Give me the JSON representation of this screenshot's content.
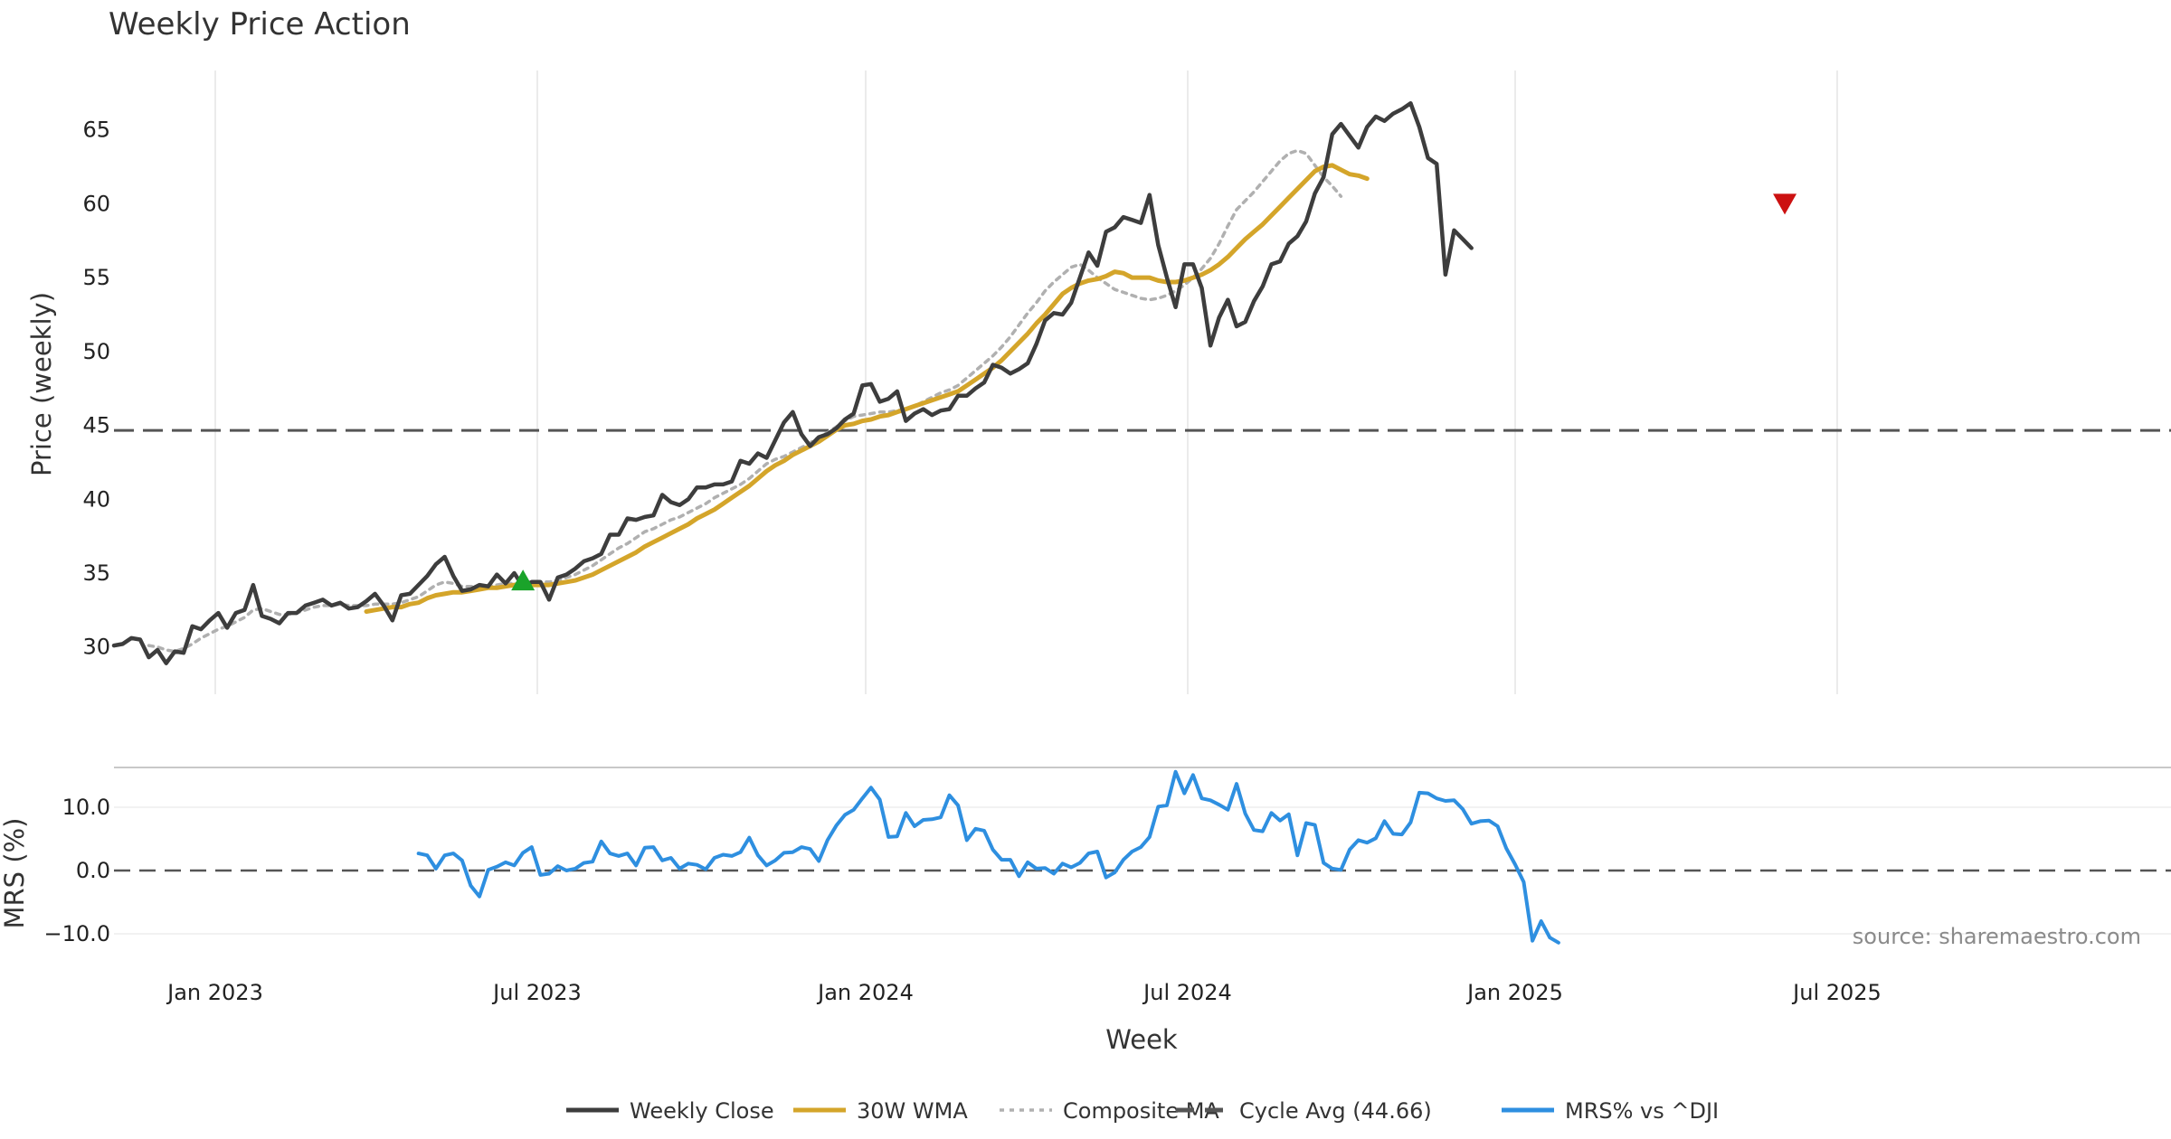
{
  "chart_data": {
    "type": "line",
    "title": "Weekly Price Action",
    "source": "source: sharemaestro.com",
    "xlabel": "Week",
    "x_ticks": [
      "Jan 2023",
      "Jul 2023",
      "Jan 2024",
      "Jul 2024",
      "Jan 2025",
      "Jul 2025"
    ],
    "price_panel": {
      "ylabel": "Price (weekly)",
      "ylim": [
        26.8,
        69.2
      ],
      "y_ticks": [
        30,
        35,
        40,
        45,
        50,
        55,
        60,
        65
      ],
      "cycle_avg": 44.66,
      "signals": [
        {
          "type": "buy",
          "week_index": 47,
          "price": 34.5,
          "color": "#1aa32a"
        },
        {
          "type": "sell",
          "week_index": 192,
          "price": 60.0,
          "color": "#cc1111"
        }
      ]
    },
    "mrs_panel": {
      "ylabel": "MRS (%)",
      "ylim": [
        -14,
        16
      ],
      "y_ticks": [
        "10.0",
        "0.0",
        "−10.0"
      ],
      "y_tick_values": [
        10,
        0,
        -10
      ],
      "zero_line": 0
    },
    "legend": [
      {
        "label": "Weekly Close",
        "color": "#3d3d3d",
        "style": "solid"
      },
      {
        "label": "30W WMA",
        "color": "#d4a52a",
        "style": "solid"
      },
      {
        "label": "Composite MA",
        "color": "#b0b0b0",
        "style": "dotted"
      },
      {
        "label": "Cycle Avg (44.66)",
        "color": "#555555",
        "style": "dashed"
      },
      {
        "label": "MRS% vs ^DJI",
        "color": "#2e8fe0",
        "style": "solid"
      }
    ],
    "series": [
      {
        "name": "Weekly Close",
        "values": [
          30.1,
          30.2,
          30.6,
          30.5,
          29.3,
          29.8,
          28.9,
          29.7,
          29.6,
          31.4,
          31.2,
          31.8,
          32.3,
          31.3,
          32.3,
          32.5,
          34.2,
          32.1,
          31.9,
          31.6,
          32.3,
          32.3,
          32.8,
          33.0,
          33.2,
          32.8,
          33.0,
          32.6,
          32.7,
          33.1,
          33.6,
          32.8,
          31.8,
          33.5,
          33.6,
          34.2,
          34.8,
          35.6,
          36.1,
          34.8,
          33.8,
          33.9,
          34.2,
          34.1,
          34.9,
          34.3,
          35.0,
          34.1,
          34.4,
          34.4,
          33.2,
          34.7,
          34.9,
          35.3,
          35.8,
          36.0,
          36.3,
          37.6,
          37.6,
          38.7,
          38.6,
          38.8,
          38.9,
          40.3,
          39.8,
          39.6,
          40.0,
          40.8,
          40.8,
          41.0,
          41.0,
          41.2,
          42.6,
          42.4,
          43.1,
          42.8,
          44.0,
          45.2,
          45.9,
          44.4,
          43.6,
          44.2,
          44.4,
          44.8,
          45.4,
          45.8,
          47.7,
          47.8,
          46.6,
          46.8,
          47.3,
          45.3,
          45.8,
          46.1,
          45.7,
          46.0,
          46.1,
          47.0,
          47.0,
          47.5,
          47.9,
          49.1,
          48.9,
          48.5,
          48.8,
          49.2,
          50.5,
          52.1,
          52.6,
          52.5,
          53.3,
          55.0,
          56.7,
          55.8,
          58.1,
          58.4,
          59.1,
          58.9,
          58.7,
          60.6,
          57.2,
          55.0,
          53.0,
          55.9,
          55.9,
          54.3,
          50.4,
          52.3,
          53.5,
          51.7,
          52.0,
          53.4,
          54.4,
          55.9,
          56.1,
          57.3,
          57.8,
          58.8,
          60.7,
          61.8,
          64.7,
          65.4,
          64.6,
          63.8,
          65.2,
          65.9,
          65.6,
          66.1,
          66.4,
          66.8,
          65.2,
          63.1,
          62.7,
          55.2,
          58.2,
          57.6,
          57.0
        ]
      },
      {
        "name": "30W WMA",
        "values": [
          null,
          null,
          null,
          null,
          null,
          null,
          null,
          null,
          null,
          null,
          null,
          null,
          null,
          null,
          null,
          null,
          null,
          null,
          null,
          null,
          null,
          null,
          null,
          null,
          null,
          null,
          null,
          null,
          null,
          32.4,
          32.5,
          32.6,
          32.7,
          32.7,
          32.9,
          33.0,
          33.3,
          33.5,
          33.6,
          33.7,
          33.7,
          33.8,
          33.9,
          34.0,
          34.0,
          34.1,
          34.2,
          34.2,
          34.2,
          34.2,
          34.2,
          34.3,
          34.4,
          34.5,
          34.7,
          34.9,
          35.2,
          35.5,
          35.8,
          36.1,
          36.4,
          36.8,
          37.1,
          37.4,
          37.7,
          38.0,
          38.3,
          38.7,
          39.0,
          39.3,
          39.7,
          40.1,
          40.5,
          40.9,
          41.4,
          41.9,
          42.3,
          42.6,
          43.0,
          43.3,
          43.6,
          43.9,
          44.3,
          44.7,
          45.0,
          45.1,
          45.3,
          45.4,
          45.6,
          45.7,
          45.9,
          46.1,
          46.3,
          46.5,
          46.7,
          46.9,
          47.1,
          47.3,
          47.7,
          48.1,
          48.5,
          48.9,
          49.4,
          50.0,
          50.6,
          51.2,
          51.9,
          52.5,
          53.2,
          53.9,
          54.3,
          54.6,
          54.8,
          54.9,
          55.1,
          55.4,
          55.3,
          55.0,
          55.0,
          55.0,
          54.8,
          54.7,
          54.7,
          54.8,
          55.0,
          55.2,
          55.5,
          55.9,
          56.4,
          57.0,
          57.6,
          58.1,
          58.6,
          59.2,
          59.8,
          60.4,
          61.0,
          61.6,
          62.2,
          62.5,
          62.6,
          62.3,
          62.0,
          61.9,
          61.7
        ]
      },
      {
        "name": "Composite MA",
        "values": [
          null,
          null,
          null,
          null,
          30.1,
          30.0,
          29.8,
          29.7,
          29.9,
          30.2,
          30.6,
          30.9,
          31.2,
          31.4,
          31.7,
          32.0,
          32.5,
          32.6,
          32.4,
          32.2,
          32.2,
          32.3,
          32.5,
          32.7,
          32.8,
          32.8,
          32.9,
          32.8,
          32.8,
          32.8,
          32.9,
          32.9,
          32.9,
          33.0,
          33.2,
          33.4,
          33.8,
          34.2,
          34.4,
          34.3,
          34.1,
          34.1,
          34.1,
          34.1,
          34.2,
          34.3,
          34.3,
          34.3,
          34.3,
          34.4,
          34.4,
          34.5,
          34.7,
          34.9,
          35.2,
          35.5,
          35.9,
          36.3,
          36.7,
          37.0,
          37.4,
          37.8,
          38.0,
          38.3,
          38.6,
          38.8,
          39.1,
          39.4,
          39.7,
          40.1,
          40.4,
          40.7,
          41.0,
          41.4,
          41.9,
          42.4,
          42.7,
          42.9,
          43.2,
          43.5,
          43.8,
          44.2,
          44.5,
          44.9,
          45.3,
          45.6,
          45.7,
          45.8,
          45.9,
          45.9,
          46.0,
          46.1,
          46.3,
          46.6,
          46.9,
          47.2,
          47.4,
          47.7,
          48.2,
          48.7,
          49.2,
          49.7,
          50.3,
          51.0,
          51.8,
          52.6,
          53.3,
          54.1,
          54.7,
          55.2,
          55.7,
          55.9,
          55.5,
          55.0,
          54.6,
          54.2,
          54.0,
          53.8,
          53.6,
          53.5,
          53.6,
          53.8,
          54.1,
          54.5,
          55.0,
          55.6,
          56.3,
          57.3,
          58.5,
          59.6,
          60.2,
          60.8,
          61.5,
          62.2,
          62.9,
          63.4,
          63.6,
          63.4,
          62.6,
          61.8,
          61.2,
          60.5
        ]
      },
      {
        "name": "MRS% vs ^DJI",
        "values": [
          2.7,
          2.4,
          0.3,
          2.4,
          2.7,
          1.6,
          -2.4,
          -4.1,
          0.1,
          0.6,
          1.3,
          0.8,
          2.8,
          3.7,
          -0.7,
          -0.5,
          0.7,
          0.0,
          0.3,
          1.2,
          1.4,
          4.6,
          2.7,
          2.3,
          2.7,
          0.8,
          3.6,
          3.7,
          1.6,
          2.0,
          0.3,
          1.1,
          0.9,
          0.2,
          2.0,
          2.5,
          2.3,
          2.9,
          5.2,
          2.4,
          0.8,
          1.6,
          2.8,
          2.9,
          3.7,
          3.4,
          1.5,
          4.8,
          7.1,
          8.8,
          9.6,
          11.4,
          13.1,
          11.2,
          5.3,
          5.4,
          9.1,
          7.0,
          8.0,
          8.1,
          8.4,
          11.9,
          10.3,
          4.8,
          6.6,
          6.3,
          3.3,
          1.7,
          1.7,
          -0.9,
          1.3,
          0.3,
          0.4,
          -0.5,
          1.1,
          0.5,
          1.2,
          2.7,
          3.0,
          -1.1,
          -0.3,
          1.7,
          3.0,
          3.7,
          5.3,
          10.1,
          10.3,
          15.6,
          12.2,
          15.1,
          11.4,
          11.1,
          10.4,
          9.6,
          13.7,
          9.0,
          6.4,
          6.2,
          9.1,
          7.9,
          8.9,
          2.4,
          7.5,
          7.2,
          1.2,
          0.3,
          0.1,
          3.3,
          4.8,
          4.4,
          5.1,
          7.8,
          5.8,
          5.7,
          7.6,
          12.3,
          12.2,
          11.4,
          11.0,
          11.1,
          9.7,
          7.4,
          7.8,
          7.9,
          7.0,
          3.5,
          1.0,
          -1.8,
          -11.1,
          -8.0,
          -10.6,
          -11.4
        ]
      }
    ]
  }
}
